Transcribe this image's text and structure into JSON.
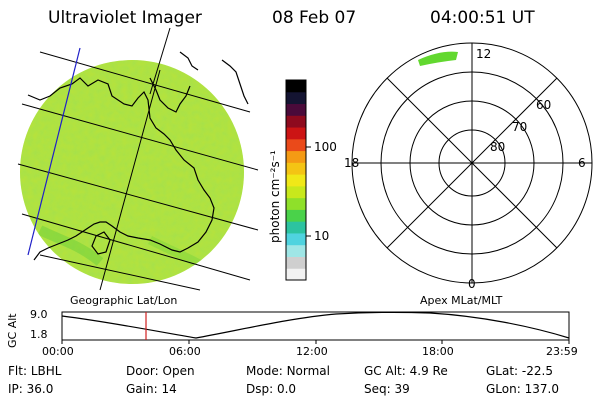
{
  "header": {
    "instrument": "Ultraviolet Imager",
    "date": "08 Feb 07",
    "time": "04:00:51 UT"
  },
  "globe_panel": {
    "label": "Geographic Lat/Lon"
  },
  "colorbar": {
    "unit_label": "photon cm⁻²s⁻¹",
    "ticks": [
      "100",
      "10"
    ],
    "colors": [
      "#f2f2f2",
      "#cfcfcf",
      "#9fe6e6",
      "#4fd3df",
      "#2cc3a0",
      "#4ad24a",
      "#8fe02a",
      "#c8e81c",
      "#f0e818",
      "#f4c414",
      "#f49a14",
      "#ea4a1a",
      "#cc1414",
      "#8e0a1e",
      "#4a0a3a",
      "#141432",
      "#000000"
    ]
  },
  "polar_panel": {
    "label": "Apex MLat/MLT",
    "mlt_labels": {
      "top": "12",
      "bottom": "0",
      "left": "18",
      "right": "6"
    },
    "lat_labels": [
      "60",
      "70",
      "80"
    ]
  },
  "altitude_plot": {
    "ylabel": "GC Alt",
    "yticks": [
      "9.0",
      "1.8"
    ],
    "xticks": [
      "00:00",
      "06:00",
      "12:00",
      "18:00",
      "23:59"
    ],
    "marker_time": "04:00"
  },
  "info": {
    "row1": [
      {
        "key": "Flt:",
        "value": "LBHL"
      },
      {
        "key": "Door:",
        "value": "Open"
      },
      {
        "key": "Mode:",
        "value": "Normal"
      },
      {
        "key": "GC Alt:",
        "value": "4.9 Re"
      },
      {
        "key": "GLat:",
        "value": "-22.5"
      }
    ],
    "row2": [
      {
        "key": "IP:",
        "value": "36.0"
      },
      {
        "key": "Gain:",
        "value": "14"
      },
      {
        "key": "Dsp:",
        "value": "0.0"
      },
      {
        "key": "Seq:",
        "value": "39"
      },
      {
        "key": "GLon:",
        "value": "137.0"
      }
    ]
  }
}
